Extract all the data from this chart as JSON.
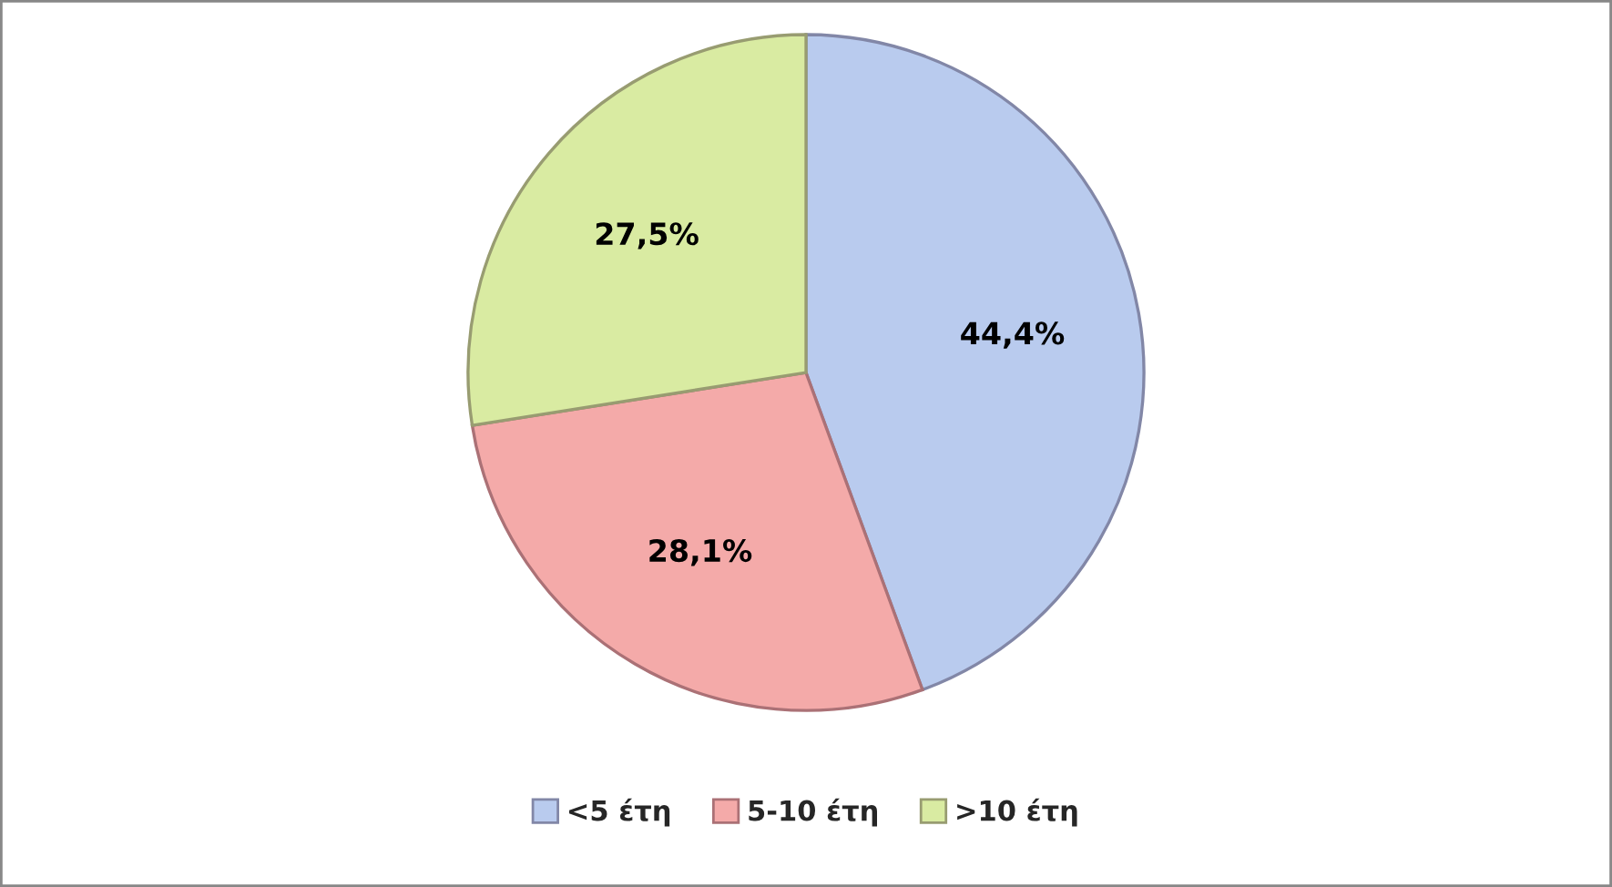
{
  "chart_data": {
    "type": "pie",
    "categories": [
      "<5 έτη",
      "5-10 έτη",
      ">10 έτη"
    ],
    "values": [
      44.4,
      28.1,
      27.5
    ],
    "value_labels": [
      "44,4%",
      "28,1%",
      "27,5%"
    ],
    "colors": [
      "#b9cbee",
      "#f4aaa9",
      "#d9eba2"
    ],
    "legend": "bottom"
  }
}
